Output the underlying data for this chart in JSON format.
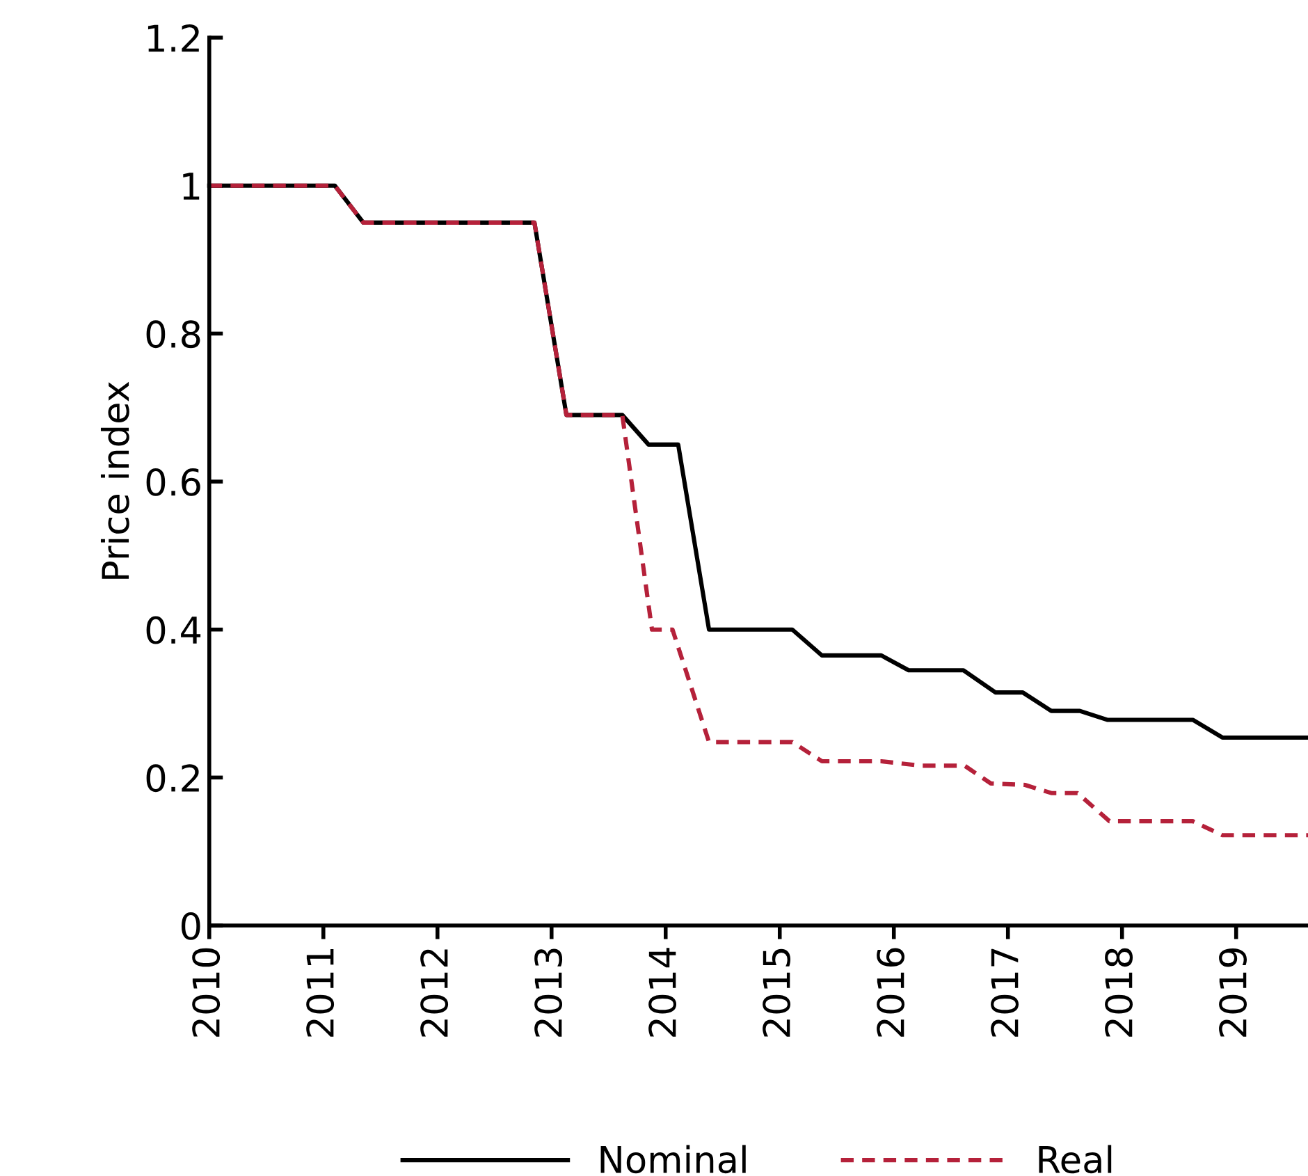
{
  "chart_data": {
    "type": "line",
    "ylabel": "Price index",
    "xlim": [
      2010,
      2019.63
    ],
    "xticks": [
      2010,
      2011,
      2012,
      2013,
      2014,
      2015,
      2016,
      2017,
      2018,
      2019
    ],
    "ylim": [
      0,
      1.2
    ],
    "yticks": [
      0,
      0.2,
      0.4,
      0.6,
      0.8,
      1,
      1.2
    ],
    "grid": false,
    "legend": "bottom",
    "series": [
      {
        "name": "Nominal",
        "color": "#000000",
        "line_style": "solid",
        "x": [
          2010.0,
          2011.1,
          2011.35,
          2012.85,
          2013.13,
          2013.62,
          2013.85,
          2014.11,
          2014.38,
          2015.11,
          2015.37,
          2015.89,
          2016.13,
          2016.61,
          2016.89,
          2017.13,
          2017.38,
          2017.63,
          2017.87,
          2018.62,
          2018.88,
          2019.63
        ],
        "values": [
          1.0,
          1.0,
          0.95,
          0.95,
          0.69,
          0.69,
          0.65,
          0.65,
          0.4,
          0.4,
          0.365,
          0.365,
          0.345,
          0.345,
          0.315,
          0.315,
          0.29,
          0.29,
          0.278,
          0.278,
          0.254,
          0.254
        ]
      },
      {
        "name": "Real",
        "color": "#b5213a",
        "line_style": "dashed",
        "x": [
          2010.0,
          2011.1,
          2011.35,
          2012.85,
          2013.13,
          2013.62,
          2013.88,
          2014.06,
          2014.38,
          2015.11,
          2015.37,
          2015.89,
          2016.24,
          2016.62,
          2016.85,
          2017.15,
          2017.38,
          2017.61,
          2017.89,
          2018.62,
          2018.88,
          2019.63
        ],
        "values": [
          1.0,
          1.0,
          0.95,
          0.95,
          0.69,
          0.69,
          0.4,
          0.4,
          0.248,
          0.248,
          0.222,
          0.222,
          0.216,
          0.216,
          0.192,
          0.19,
          0.179,
          0.179,
          0.141,
          0.141,
          0.122,
          0.122
        ]
      }
    ]
  }
}
